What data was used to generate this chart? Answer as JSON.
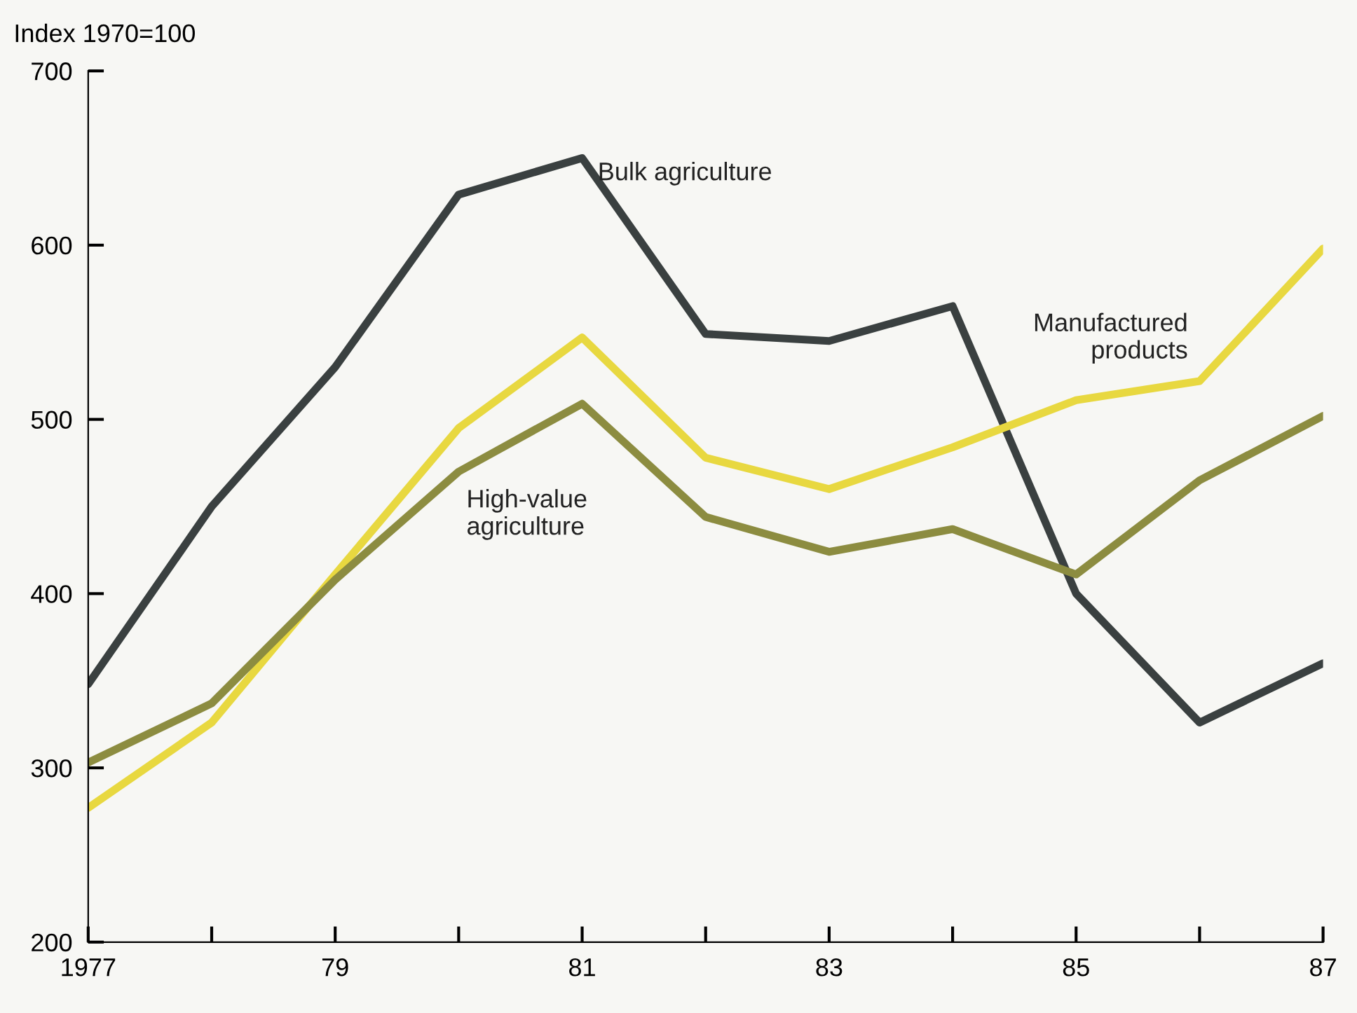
{
  "chart_data": {
    "type": "line",
    "ylabel": "Index 1970=100",
    "x": [
      1977,
      1978,
      1979,
      1980,
      1981,
      1982,
      1983,
      1984,
      1985,
      1986,
      1987
    ],
    "series": [
      {
        "name": "Bulk agriculture",
        "color": "#3a4040",
        "values": [
          348,
          450,
          530,
          629,
          650,
          549,
          545,
          565,
          400,
          326,
          360
        ]
      },
      {
        "name": "Manufactured products",
        "color": "#e8d840",
        "values": [
          277,
          326,
          411,
          495,
          547,
          478,
          460,
          484,
          511,
          522,
          598
        ]
      },
      {
        "name": "High-value agriculture",
        "color": "#8c8c40",
        "values": [
          303,
          337,
          408,
          470,
          509,
          444,
          424,
          437,
          411,
          465,
          502
        ]
      }
    ],
    "xlim": [
      1977,
      1987
    ],
    "xticks": [
      {
        "value": 1977,
        "label": "1977"
      },
      {
        "value": 1978,
        "label": null
      },
      {
        "value": 1979,
        "label": "79"
      },
      {
        "value": 1980,
        "label": null
      },
      {
        "value": 1981,
        "label": "81"
      },
      {
        "value": 1982,
        "label": null
      },
      {
        "value": 1983,
        "label": "83"
      },
      {
        "value": 1984,
        "label": null
      },
      {
        "value": 1985,
        "label": "85"
      },
      {
        "value": 1986,
        "label": null
      },
      {
        "value": 1987,
        "label": "87"
      }
    ],
    "ylim": [
      200,
      700
    ],
    "yticks": [
      200,
      300,
      400,
      500,
      600,
      700
    ],
    "grid": false,
    "legend": false,
    "marker": "none",
    "line_style": "solid"
  }
}
